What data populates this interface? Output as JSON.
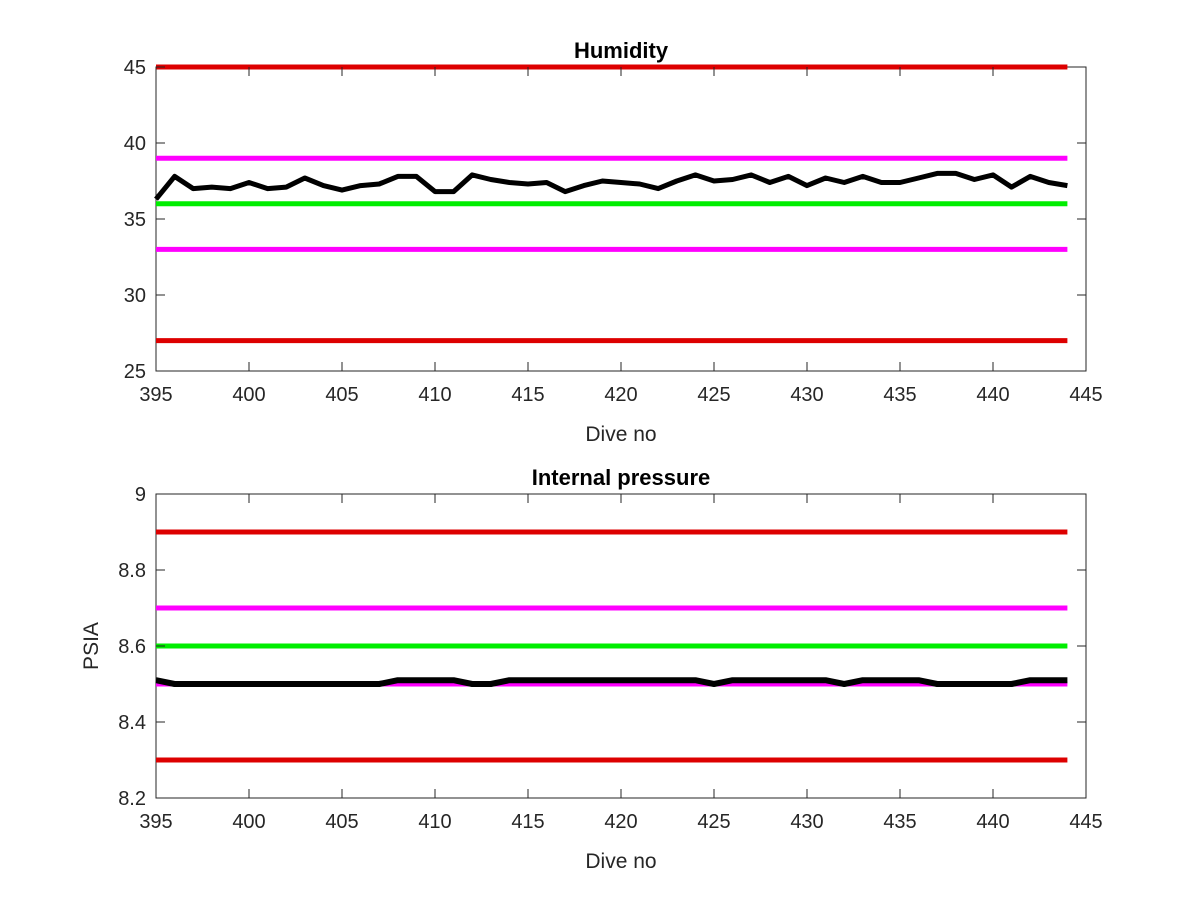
{
  "chart_data": [
    {
      "type": "line",
      "title": "Humidity",
      "xlabel": "Dive no",
      "ylabel": "",
      "xlim": [
        395,
        445
      ],
      "ylim": [
        25,
        45
      ],
      "xticks": [
        395,
        400,
        405,
        410,
        415,
        420,
        425,
        430,
        435,
        440,
        445
      ],
      "yticks": [
        25,
        30,
        35,
        40,
        45
      ],
      "grid": false,
      "reference_lines": [
        {
          "y": 45,
          "color": "#dd0000"
        },
        {
          "y": 39,
          "color": "#ff00ff"
        },
        {
          "y": 36,
          "color": "#00ee00"
        },
        {
          "y": 33,
          "color": "#ff00ff"
        },
        {
          "y": 27,
          "color": "#dd0000"
        }
      ],
      "series": [
        {
          "color": "#000000",
          "x": [
            395,
            396,
            397,
            398,
            399,
            400,
            401,
            402,
            403,
            404,
            405,
            406,
            407,
            408,
            409,
            410,
            411,
            412,
            413,
            414,
            415,
            416,
            417,
            418,
            419,
            420,
            421,
            422,
            423,
            424,
            425,
            426,
            427,
            428,
            429,
            430,
            431,
            432,
            433,
            434,
            435,
            436,
            437,
            438,
            439,
            440,
            441,
            442,
            443,
            444
          ],
          "values": [
            36.3,
            37.8,
            37.0,
            37.1,
            37.0,
            37.4,
            37.0,
            37.1,
            37.7,
            37.2,
            36.9,
            37.2,
            37.3,
            37.8,
            37.8,
            36.8,
            36.8,
            37.9,
            37.6,
            37.4,
            37.3,
            37.4,
            36.8,
            37.2,
            37.5,
            37.4,
            37.3,
            37.0,
            37.5,
            37.9,
            37.5,
            37.6,
            37.9,
            37.4,
            37.8,
            37.2,
            37.7,
            37.4,
            37.8,
            37.4,
            37.4,
            37.7,
            38.0,
            38.0,
            37.6,
            37.9,
            37.1,
            37.8,
            37.4,
            37.2
          ]
        }
      ]
    },
    {
      "type": "line",
      "title": "Internal pressure",
      "xlabel": "Dive no",
      "ylabel": "PSIA",
      "xlim": [
        395,
        445
      ],
      "ylim": [
        8.2,
        9.0
      ],
      "xticks": [
        395,
        400,
        405,
        410,
        415,
        420,
        425,
        430,
        435,
        440,
        445
      ],
      "yticks": [
        "8.2",
        "8.4",
        "8.6",
        "8.8",
        "9"
      ],
      "grid": false,
      "reference_lines": [
        {
          "y": 8.9,
          "color": "#dd0000"
        },
        {
          "y": 8.7,
          "color": "#ff00ff"
        },
        {
          "y": 8.6,
          "color": "#00ee00"
        },
        {
          "y": 8.5,
          "color": "#ff00ff"
        },
        {
          "y": 8.3,
          "color": "#dd0000"
        }
      ],
      "series": [
        {
          "color": "#000000",
          "x": [
            395,
            396,
            397,
            398,
            399,
            400,
            401,
            402,
            403,
            404,
            405,
            406,
            407,
            408,
            409,
            410,
            411,
            412,
            413,
            414,
            415,
            416,
            417,
            418,
            419,
            420,
            421,
            422,
            423,
            424,
            425,
            426,
            427,
            428,
            429,
            430,
            431,
            432,
            433,
            434,
            435,
            436,
            437,
            438,
            439,
            440,
            441,
            442,
            443,
            444
          ],
          "values": [
            8.51,
            8.5,
            8.5,
            8.5,
            8.5,
            8.5,
            8.5,
            8.5,
            8.5,
            8.5,
            8.5,
            8.5,
            8.5,
            8.51,
            8.51,
            8.51,
            8.51,
            8.5,
            8.5,
            8.51,
            8.51,
            8.51,
            8.51,
            8.51,
            8.51,
            8.51,
            8.51,
            8.51,
            8.51,
            8.51,
            8.5,
            8.51,
            8.51,
            8.51,
            8.51,
            8.51,
            8.51,
            8.5,
            8.51,
            8.51,
            8.51,
            8.51,
            8.5,
            8.5,
            8.5,
            8.5,
            8.5,
            8.51,
            8.51,
            8.51
          ]
        }
      ]
    }
  ]
}
